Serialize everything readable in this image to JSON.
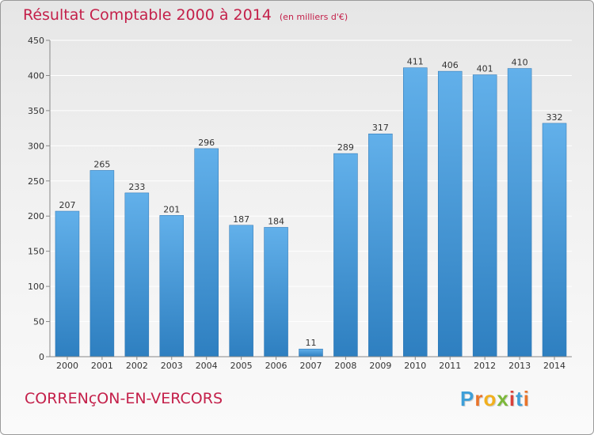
{
  "title": "Résultat Comptable 2000 à 2014",
  "subtitle": "(en milliers d'€)",
  "commune": "CORRENçON-EN-VERCORS",
  "logo": {
    "text": "Proxiti",
    "letter_colors": [
      "#3e9fd8",
      "#e9742b",
      "#f2b01e",
      "#7cb83a",
      "#d8413b",
      "#3e9fd8",
      "#e9742b"
    ]
  },
  "colors": {
    "title": "#c4204a",
    "bar_light": "#62b0ea",
    "bar_dark": "#2e7fc0",
    "grid": "#ffffff",
    "axis_text": "#333333"
  },
  "chart_data": {
    "type": "bar",
    "categories": [
      "2000",
      "2001",
      "2002",
      "2003",
      "2004",
      "2005",
      "2006",
      "2007",
      "2008",
      "2009",
      "2010",
      "2011",
      "2012",
      "2013",
      "2014"
    ],
    "values": [
      207,
      265,
      233,
      201,
      296,
      187,
      184,
      11,
      289,
      317,
      411,
      406,
      401,
      410,
      332
    ],
    "ylim": [
      0,
      450
    ],
    "yticks": [
      0,
      50,
      100,
      150,
      200,
      250,
      300,
      350,
      400,
      450
    ],
    "grid": true,
    "data_labels": true
  }
}
